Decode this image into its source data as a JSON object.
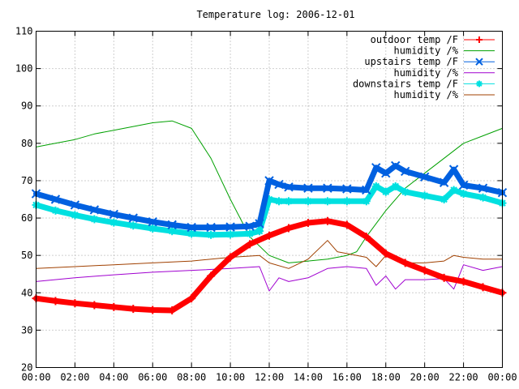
{
  "chart_data": {
    "type": "line",
    "title": "Temperature log: 2006-12-01",
    "xlabel": "",
    "ylabel": "",
    "ylim": [
      20,
      110
    ],
    "xlim": [
      "00:00",
      "24:00"
    ],
    "grid": true,
    "legend_position": "top-right",
    "y_ticks": [
      "20",
      "30",
      "40",
      "50",
      "60",
      "70",
      "80",
      "90",
      "100",
      "110"
    ],
    "x_ticks": [
      "00:00",
      "02:00",
      "04:00",
      "06:00",
      "08:00",
      "10:00",
      "12:00",
      "14:00",
      "16:00",
      "18:00",
      "20:00",
      "22:00",
      "00:00"
    ],
    "series": [
      {
        "name": "outdoor temp /F",
        "color": "#ff0000",
        "marker": "plus",
        "style": "thick",
        "x": [
          "00:00",
          "01:00",
          "02:00",
          "03:00",
          "04:00",
          "05:00",
          "06:00",
          "07:00",
          "08:00",
          "09:00",
          "10:00",
          "11:00",
          "12:00",
          "13:00",
          "14:00",
          "15:00",
          "16:00",
          "17:00",
          "18:00",
          "19:00",
          "20:00",
          "21:00",
          "22:00",
          "23:00",
          "24:00"
        ],
        "values": [
          38.5,
          37.8,
          37.2,
          36.7,
          36.2,
          35.7,
          35.4,
          35.3,
          38.5,
          44.5,
          49.5,
          53.0,
          55.3,
          57.3,
          58.7,
          59.2,
          58.2,
          55.0,
          50.5,
          48.0,
          46.0,
          44.0,
          43.0,
          41.5,
          40.0
        ]
      },
      {
        "name": "humidity /%",
        "color": "#00a000",
        "marker": "none",
        "style": "thin",
        "x": [
          "00:00",
          "01:00",
          "02:00",
          "03:00",
          "04:00",
          "05:00",
          "06:00",
          "07:00",
          "08:00",
          "09:00",
          "10:00",
          "11:00",
          "12:00",
          "13:00",
          "14:00",
          "15:00",
          "16:00",
          "16:30",
          "17:00",
          "18:00",
          "19:00",
          "20:00",
          "21:00",
          "22:00",
          "23:00",
          "24:00"
        ],
        "values": [
          79,
          80,
          81,
          82.5,
          83.5,
          84.5,
          85.5,
          86,
          84,
          76,
          65,
          55,
          50,
          48,
          48.5,
          49,
          50,
          51,
          55,
          62,
          68,
          72,
          76,
          80,
          82,
          84
        ]
      },
      {
        "name": "upstairs temp /F",
        "color": "#0060e0",
        "marker": "x",
        "style": "thick",
        "x": [
          "00:00",
          "01:00",
          "02:00",
          "03:00",
          "04:00",
          "05:00",
          "06:00",
          "07:00",
          "08:00",
          "09:00",
          "10:00",
          "11:00",
          "11:30",
          "12:00",
          "12:30",
          "13:00",
          "14:00",
          "15:00",
          "16:00",
          "17:00",
          "17:30",
          "18:00",
          "18:30",
          "19:00",
          "20:00",
          "21:00",
          "21:30",
          "22:00",
          "23:00",
          "24:00"
        ],
        "values": [
          66.5,
          65,
          63.5,
          62.2,
          61,
          60,
          59,
          58.2,
          57.5,
          57.5,
          57.6,
          57.8,
          58.5,
          70,
          69,
          68.3,
          68,
          68,
          67.8,
          67.5,
          73.5,
          72,
          74,
          72.5,
          71,
          69.5,
          73,
          68.8,
          68,
          66.8
        ]
      },
      {
        "name": "humidity /%",
        "color": "#a000d0",
        "marker": "none",
        "style": "thin",
        "x": [
          "00:00",
          "02:00",
          "04:00",
          "06:00",
          "08:00",
          "10:00",
          "11:30",
          "12:00",
          "12:30",
          "13:00",
          "14:00",
          "15:00",
          "16:00",
          "17:00",
          "17:30",
          "18:00",
          "18:30",
          "19:00",
          "20:00",
          "21:00",
          "21:30",
          "22:00",
          "23:00",
          "24:00"
        ],
        "values": [
          43,
          44,
          44.8,
          45.5,
          46,
          46.5,
          47,
          40.5,
          44,
          43,
          44,
          46.5,
          47,
          46.5,
          42,
          44.5,
          41,
          43.5,
          43.5,
          43.8,
          41,
          47.5,
          46,
          47
        ]
      },
      {
        "name": "downstairs temp /F",
        "color": "#00e0e0",
        "marker": "star",
        "style": "thick",
        "x": [
          "00:00",
          "01:00",
          "02:00",
          "03:00",
          "04:00",
          "05:00",
          "06:00",
          "07:00",
          "08:00",
          "09:00",
          "10:00",
          "11:00",
          "11:30",
          "12:00",
          "12:30",
          "13:00",
          "14:00",
          "15:00",
          "16:00",
          "17:00",
          "17:30",
          "18:00",
          "18:30",
          "19:00",
          "20:00",
          "21:00",
          "21:30",
          "22:00",
          "23:00",
          "24:00"
        ],
        "values": [
          63.5,
          62,
          60.8,
          59.7,
          58.8,
          58,
          57.2,
          56.5,
          55.8,
          55.5,
          55.6,
          55.8,
          56.5,
          65,
          64.5,
          64.5,
          64.5,
          64.5,
          64.5,
          64.5,
          68.5,
          67,
          68.5,
          67,
          66,
          65,
          67.5,
          66.5,
          65.5,
          64
        ]
      },
      {
        "name": "humidity /%",
        "color": "#a04000",
        "marker": "none",
        "style": "thin",
        "x": [
          "00:00",
          "02:00",
          "04:00",
          "06:00",
          "08:00",
          "10:00",
          "11:30",
          "12:00",
          "13:00",
          "14:00",
          "15:00",
          "15:30",
          "16:00",
          "17:00",
          "17:30",
          "18:00",
          "19:00",
          "20:00",
          "21:00",
          "21:30",
          "22:00",
          "23:00",
          "24:00"
        ],
        "values": [
          46.5,
          47,
          47.5,
          48,
          48.5,
          49.5,
          50,
          48,
          46.5,
          49,
          54,
          51,
          50.5,
          49.5,
          47,
          50,
          48,
          48,
          48.5,
          50,
          49.5,
          49,
          49
        ]
      }
    ]
  }
}
